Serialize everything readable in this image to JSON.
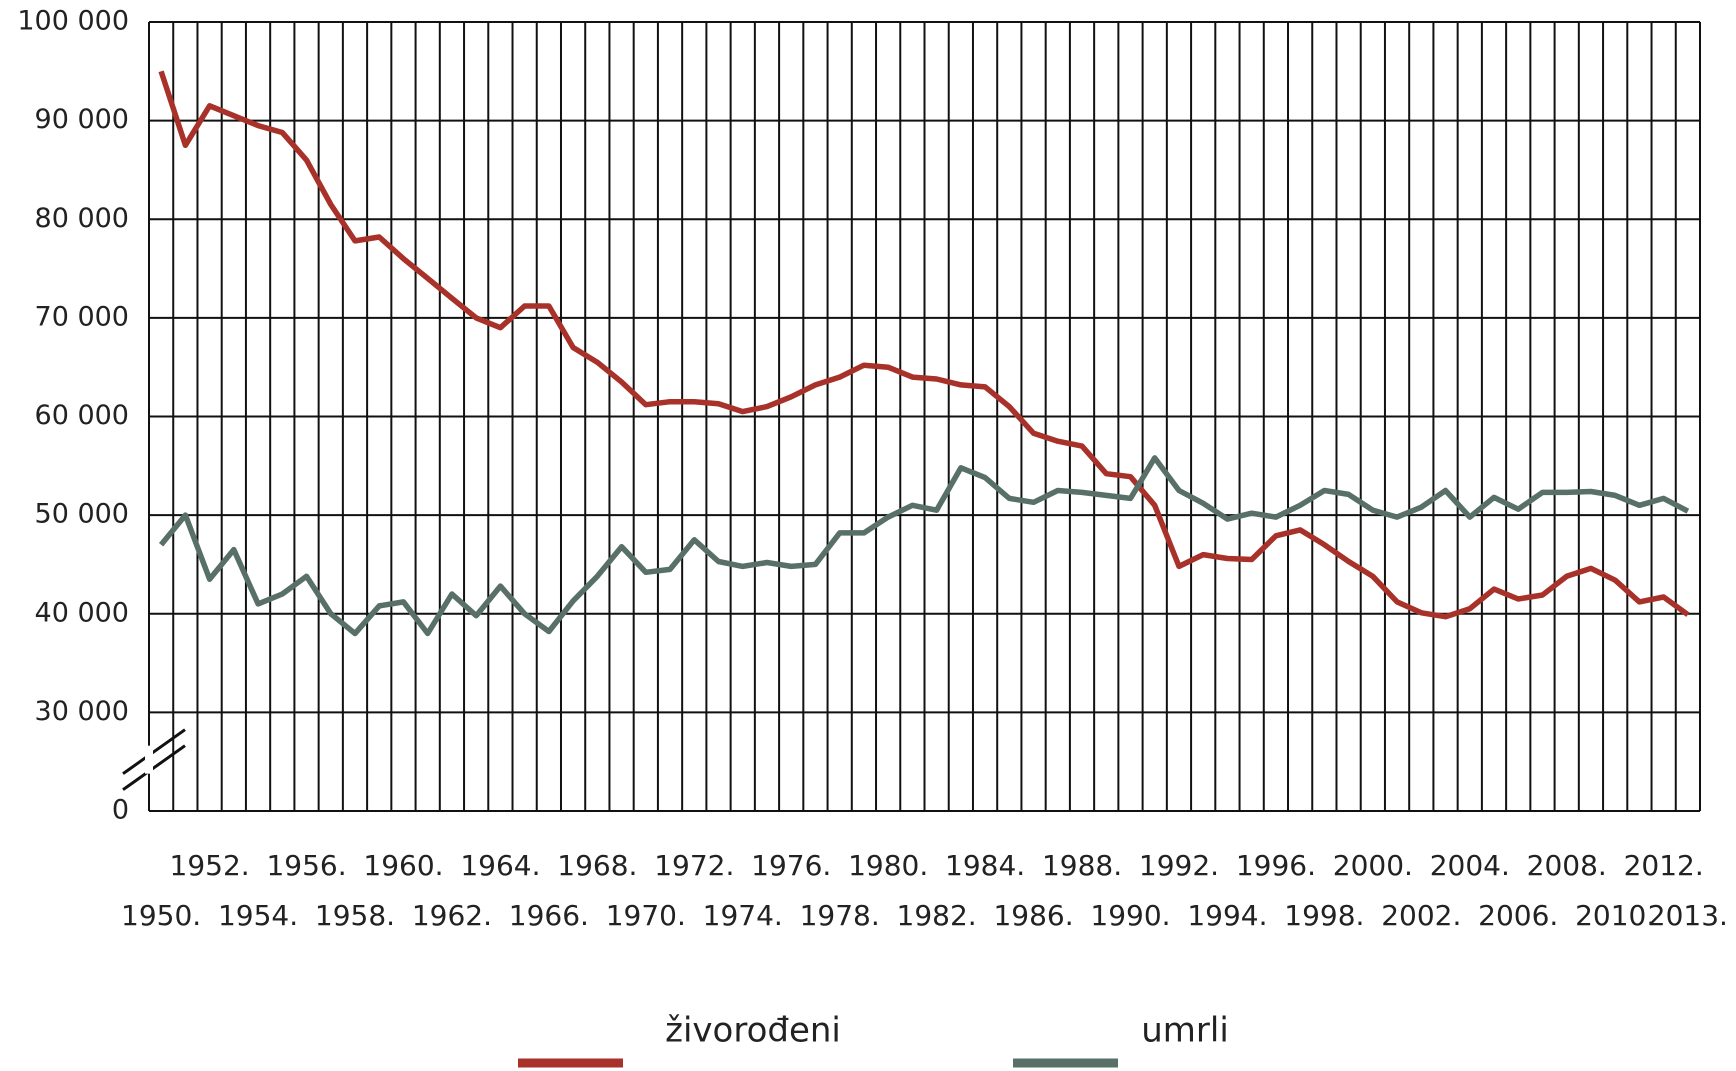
{
  "chart_data": {
    "type": "line",
    "categories": [
      "1950.",
      null,
      "1952.",
      null,
      "1954.",
      null,
      "1956.",
      null,
      "1958.",
      null,
      "1960.",
      null,
      "1962.",
      null,
      "1964.",
      null,
      "1966.",
      null,
      "1968.",
      null,
      "1970.",
      null,
      "1972.",
      null,
      "1974.",
      null,
      "1976.",
      null,
      "1978.",
      null,
      "1980.",
      null,
      "1982.",
      null,
      "1984.",
      null,
      "1986.",
      null,
      "1988.",
      null,
      "1990.",
      null,
      "1992.",
      null,
      "1994.",
      null,
      "1996.",
      null,
      "1998.",
      null,
      "2000.",
      null,
      "2002.",
      null,
      "2004.",
      null,
      "2006.",
      null,
      "2008.",
      null,
      "2010.",
      null,
      "2012.",
      "2013."
    ],
    "series": [
      {
        "name": "živorođeni",
        "color": "#a8322a",
        "values": [
          95000,
          87500,
          91500,
          90500,
          89500,
          88800,
          86000,
          81500,
          77800,
          78200,
          76000,
          74000,
          72000,
          70000,
          69000,
          71200,
          71200,
          67000,
          65500,
          63500,
          61200,
          61500,
          61500,
          61300,
          60500,
          61000,
          62000,
          63200,
          64000,
          65200,
          65000,
          64000,
          63800,
          63200,
          63000,
          61000,
          58300,
          57500,
          57000,
          54200,
          53900,
          51000,
          44800,
          46000,
          45600,
          45500,
          47900,
          48500,
          47000,
          45300,
          43800,
          41200,
          40100,
          39700,
          40500,
          42500,
          41500,
          41900,
          43800,
          44600,
          43400,
          41200,
          41700,
          39900
        ]
      },
      {
        "name": "umrli",
        "color": "#587068",
        "values": [
          47000,
          50000,
          43500,
          46500,
          41000,
          42000,
          43800,
          40000,
          38000,
          40800,
          41200,
          38000,
          42000,
          39800,
          42800,
          40000,
          38200,
          41300,
          43800,
          46800,
          44200,
          44500,
          47500,
          45300,
          44800,
          45200,
          44800,
          45000,
          48200,
          48200,
          49800,
          51000,
          50500,
          54800,
          53800,
          51700,
          51300,
          52500,
          52300,
          52000,
          51700,
          55800,
          52500,
          51200,
          49600,
          50200,
          49800,
          51000,
          52500,
          52100,
          50500,
          49800,
          50800,
          52500,
          49800,
          51800,
          50600,
          52300,
          52300,
          52400,
          52000,
          51000,
          51700,
          50400
        ]
      }
    ],
    "ylim": [
      0,
      100000
    ],
    "y_break": [
      0,
      30000
    ],
    "yticks": [
      0,
      {
        "value": 30000,
        "label": "30 000"
      },
      {
        "value": 40000,
        "label": "40 000"
      },
      {
        "value": 50000,
        "label": "50 000"
      },
      {
        "value": 60000,
        "label": "60 000"
      },
      {
        "value": 70000,
        "label": "70 000"
      },
      {
        "value": 80000,
        "label": "80 000"
      },
      {
        "value": 90000,
        "label": "90 000"
      },
      {
        "value": 100000,
        "label": "100 000"
      }
    ],
    "grid": true,
    "legend": "bottom"
  }
}
